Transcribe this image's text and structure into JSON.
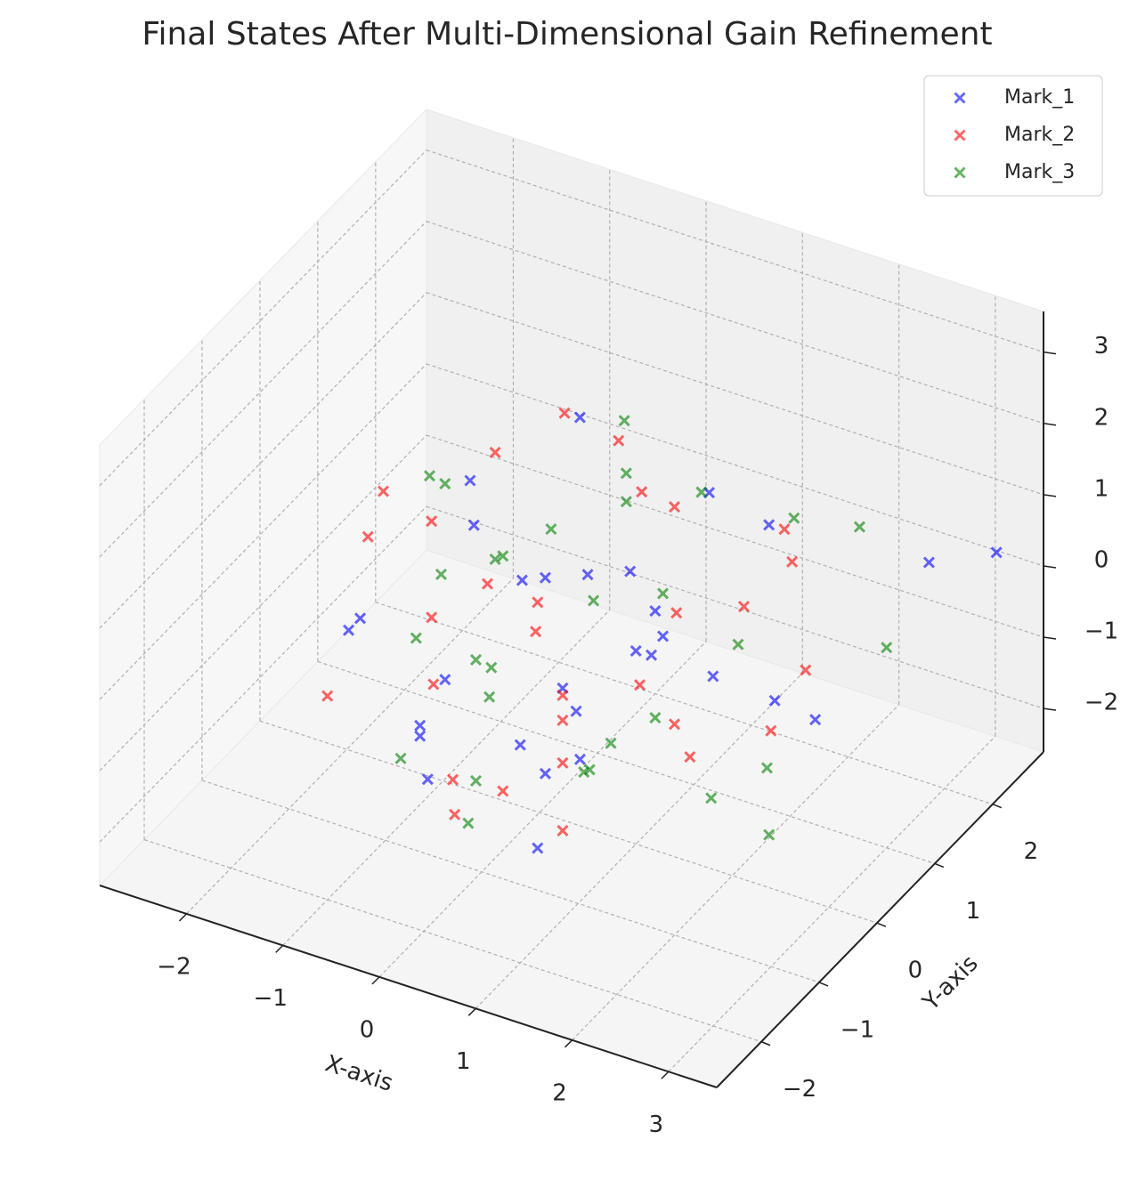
{
  "chart_data": {
    "type": "scatter3d",
    "title": "Final States After Multi-Dimensional Gain Refinement",
    "x_label": "X-axis",
    "y_label": "Y-axis",
    "xlim": [
      -2.9,
      3.5
    ],
    "ylim": [
      -2.77,
      2.88
    ],
    "zlim": [
      -2.61,
      3.57
    ],
    "xticks": [
      {
        "value": -2,
        "label": "−2"
      },
      {
        "value": -1,
        "label": "−1"
      },
      0,
      1,
      2,
      3
    ],
    "yticks": [
      {
        "value": -2,
        "label": "−2"
      },
      {
        "value": -1,
        "label": "−1"
      },
      0,
      1,
      2
    ],
    "zticks": [
      {
        "value": -2,
        "label": "−2"
      },
      {
        "value": -1,
        "label": "−1"
      },
      0,
      1,
      2,
      3
    ],
    "grid": true,
    "legend": "upper right",
    "marker": "x",
    "series": [
      {
        "name": "Mark_1",
        "color": "#0000ff",
        "x": [
          0.2,
          -0.5,
          1.1,
          0.8,
          -1.2,
          0.5,
          1.9,
          2.9,
          3.3,
          -0.3,
          0.1,
          0.9,
          -1.8,
          0.4,
          1.5,
          -0.8,
          0.6,
          1.2,
          -0.1,
          2.2,
          0.3,
          -1.0,
          1.7,
          0.0,
          -0.6,
          2.5,
          0.7,
          -1.5,
          1.0,
          -0.2
        ],
        "y": [
          0.5,
          -0.8,
          0.3,
          1.6,
          -1.1,
          -0.2,
          0.8,
          1.9,
          2.4,
          1.2,
          -0.5,
          -1.4,
          -0.3,
          0.9,
          -1.8,
          0.2,
          -0.6,
          1.0,
          -1.9,
          0.4,
          1.5,
          -0.4,
          -0.9,
          0.1,
          0.7,
          0.6,
          -1.2,
          1.3,
          0.0,
          -1.6
        ],
        "z": [
          0.4,
          -0.3,
          0.1,
          0.9,
          0.5,
          -0.8,
          1.6,
          0.6,
          0.5,
          1.8,
          -1.2,
          -0.5,
          -0.6,
          0.2,
          0.3,
          0.9,
          -0.1,
          -1.0,
          0.0,
          -0.4,
          -0.9,
          -1.5,
          1.1,
          0.6,
          -0.2,
          -0.7,
          -1.8,
          0.3,
          0.1,
          -0.9
        ]
      },
      {
        "name": "Mark_2",
        "color": "#ff0000",
        "x": [
          -0.4,
          0.6,
          1.3,
          -1.6,
          0.0,
          2.0,
          -0.9,
          0.9,
          1.6,
          -0.2,
          0.3,
          -1.3,
          2.4,
          0.7,
          -0.7,
          1.1,
          0.2,
          -2.1,
          1.8,
          0.5,
          -0.1,
          1.4,
          -1.0,
          0.8,
          2.7,
          0.1,
          -0.5,
          1.2,
          0.4,
          -1.9
        ],
        "y": [
          1.1,
          -0.6,
          0.2,
          -0.3,
          -1.5,
          0.9,
          0.6,
          -1.1,
          1.7,
          0.3,
          -0.1,
          1.4,
          0.0,
          -1.8,
          -0.7,
          0.5,
          2.0,
          0.8,
          -0.4,
          -0.9,
          -1.3,
          1.2,
          -0.2,
          0.4,
          0.1,
          1.6,
          -1.0,
          -1.6,
          0.7,
          -0.5
        ],
        "z": [
          1.9,
          -0.2,
          0.6,
          0.8,
          -0.9,
          1.5,
          -0.3,
          -0.6,
          0.2,
          0.0,
          -1.1,
          0.7,
          -0.4,
          -0.5,
          0.4,
          -1.3,
          0.1,
          0.3,
          -0.7,
          0.9,
          -1.6,
          -0.1,
          1.2,
          -0.8,
          0.5,
          0.6,
          -0.2,
          -1.0,
          2.2,
          -1.4
        ]
      },
      {
        "name": "Mark_3",
        "color": "#008000",
        "x": [
          0.9,
          -0.7,
          1.5,
          0.2,
          -1.4,
          2.1,
          0.5,
          -0.2,
          1.0,
          3.0,
          -1.1,
          0.3,
          1.7,
          -0.5,
          2.6,
          0.0,
          -1.8,
          0.8,
          1.3,
          -0.9,
          0.6,
          2.3,
          -0.3,
          1.1,
          0.4,
          -1.5,
          1.9,
          0.1,
          -0.6,
          2.8
        ],
        "y": [
          1.3,
          0.4,
          -0.5,
          -1.2,
          0.7,
          0.9,
          0.1,
          1.8,
          -0.8,
          1.0,
          -0.3,
          -1.6,
          0.6,
          0.2,
          -0.4,
          1.5,
          1.1,
          -0.1,
          -1.4,
          -0.9,
          0.5,
          1.7,
          -0.6,
          0.3,
          -1.9,
          0.8,
          -0.2,
          -1.0,
          1.2,
          -0.7
        ],
        "z": [
          1.2,
          0.3,
          -0.2,
          0.1,
          0.8,
          1.7,
          0.5,
          1.3,
          -0.9,
          0.2,
          -0.4,
          -0.7,
          0.0,
          0.6,
          -0.5,
          0.9,
          0.4,
          -1.2,
          -0.3,
          -1.5,
          1.6,
          1.0,
          -0.1,
          0.7,
          -1.0,
          -0.6,
          -1.4,
          0.3,
          0.1,
          -1.1
        ]
      }
    ]
  }
}
